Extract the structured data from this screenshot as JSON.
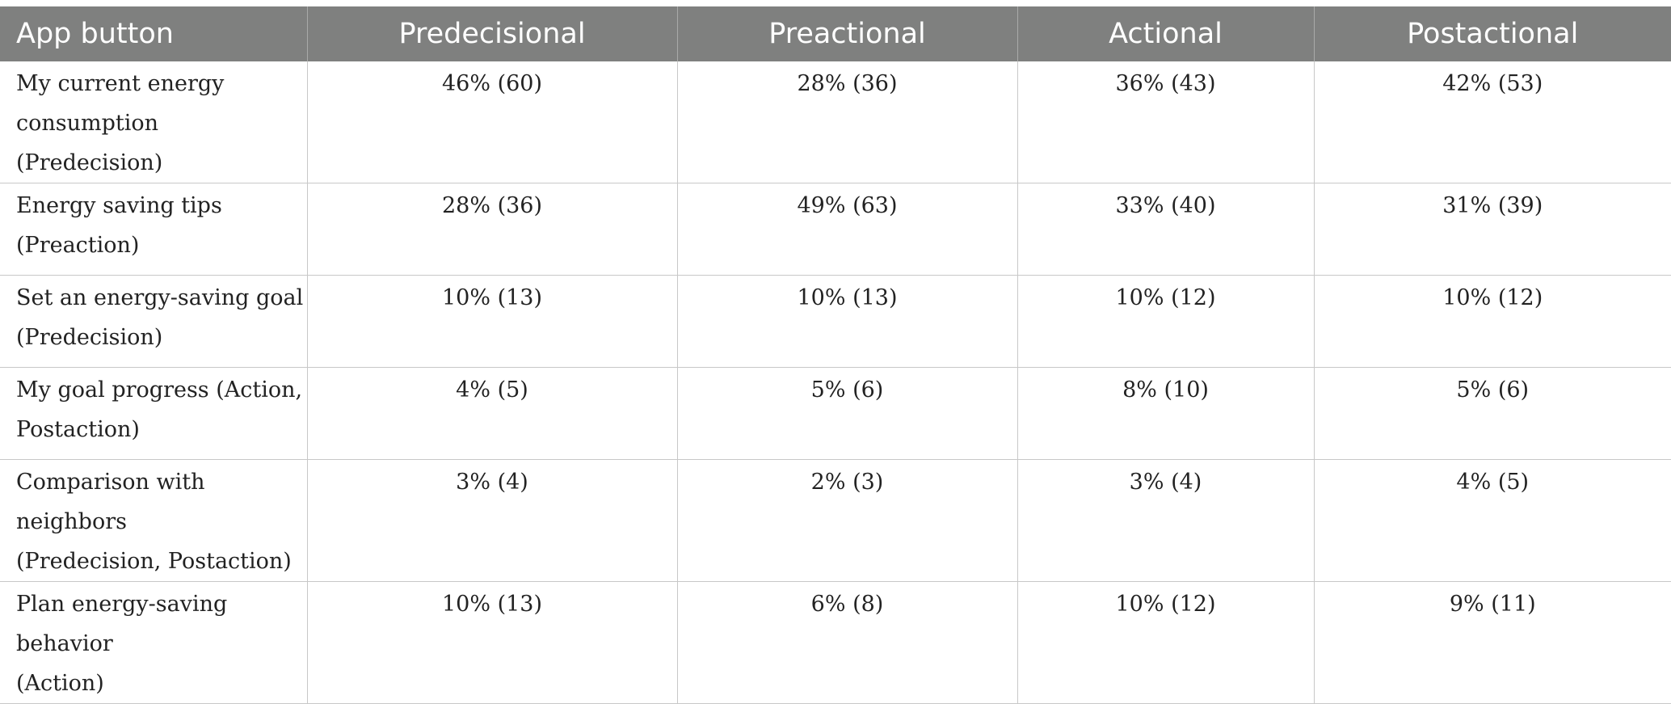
{
  "table": {
    "headers": [
      "App button",
      "Predecisional",
      "Preactional",
      "Actional",
      "Postactional"
    ],
    "rows": [
      {
        "label_line1": "My current energy",
        "label_line2": "consumption (Predecision)",
        "values": [
          "46% (60)",
          "28% (36)",
          "36% (43)",
          "42% (53)"
        ]
      },
      {
        "label_line1": "Energy saving tips",
        "label_line2": "(Preaction)",
        "values": [
          "28% (36)",
          "49% (63)",
          "33% (40)",
          "31% (39)"
        ]
      },
      {
        "label_line1": "Set an energy-saving goal",
        "label_line2": "(Predecision)",
        "values": [
          "10% (13)",
          "10% (13)",
          "10% (12)",
          "10% (12)"
        ]
      },
      {
        "label_line1": "My goal progress (Action,",
        "label_line2": "Postaction)",
        "values": [
          "4% (5)",
          "5% (6)",
          "8% (10)",
          "5% (6)"
        ]
      },
      {
        "label_line1": "Comparison with neighbors",
        "label_line2": "(Predecision, Postaction)",
        "values": [
          "3% (4)",
          "2% (3)",
          "3% (4)",
          "4% (5)"
        ]
      },
      {
        "label_line1": "Plan energy-saving behavior",
        "label_line2": "(Action)",
        "values": [
          "10% (13)",
          "6% (8)",
          "10% (12)",
          "9% (11)"
        ]
      }
    ]
  }
}
